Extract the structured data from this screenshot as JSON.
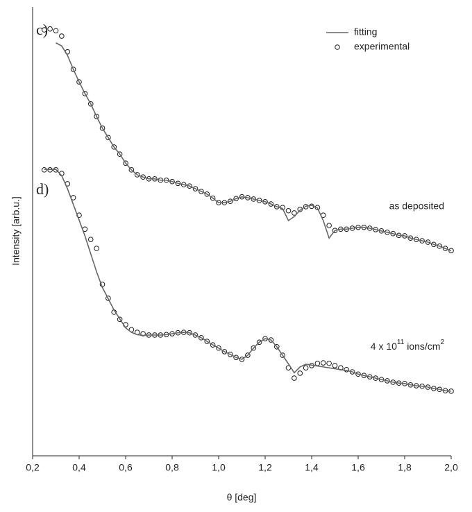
{
  "chart_data": {
    "type": "line",
    "xlabel": "θ [deg]",
    "ylabel": "Intensity [arb.u.]",
    "xlim": [
      0.2,
      2.0
    ],
    "ylim": [
      0,
      100
    ],
    "xticks": [
      {
        "value": 0.2,
        "label": "0,2"
      },
      {
        "value": 0.4,
        "label": "0,4"
      },
      {
        "value": 0.6,
        "label": "0,6"
      },
      {
        "value": 0.8,
        "label": "0,8"
      },
      {
        "value": 1.0,
        "label": "1,0"
      },
      {
        "value": 1.2,
        "label": "1,2"
      },
      {
        "value": 1.4,
        "label": "1,4"
      },
      {
        "value": 1.6,
        "label": "1,6"
      },
      {
        "value": 1.8,
        "label": "1,8"
      },
      {
        "value": 2.0,
        "label": "2,0"
      }
    ],
    "legend": "upper right",
    "annotations": {
      "c": "c)",
      "d": "d)",
      "top_curve": "as deposited",
      "bottom_curve": [
        "4 x 10",
        "11",
        " ions/cm",
        "2"
      ]
    },
    "x": [
      0.25,
      0.275,
      0.3,
      0.325,
      0.35,
      0.375,
      0.4,
      0.425,
      0.45,
      0.475,
      0.5,
      0.525,
      0.55,
      0.575,
      0.6,
      0.625,
      0.65,
      0.675,
      0.7,
      0.725,
      0.75,
      0.775,
      0.8,
      0.825,
      0.85,
      0.875,
      0.9,
      0.925,
      0.95,
      0.975,
      1.0,
      1.025,
      1.05,
      1.075,
      1.1,
      1.125,
      1.15,
      1.175,
      1.2,
      1.225,
      1.25,
      1.275,
      1.3,
      1.325,
      1.35,
      1.375,
      1.4,
      1.425,
      1.45,
      1.475,
      1.5,
      1.525,
      1.55,
      1.575,
      1.6,
      1.625,
      1.65,
      1.675,
      1.7,
      1.725,
      1.75,
      1.775,
      1.8,
      1.825,
      1.85,
      1.875,
      1.9,
      1.925,
      1.95,
      1.975,
      2.0
    ],
    "series": [
      {
        "name": "fitting",
        "mark": "line",
        "color": "#666666",
        "values": [
          null,
          null,
          92.0,
          91.3,
          89.2,
          86.1,
          83.3,
          80.7,
          78.4,
          75.6,
          73.0,
          70.9,
          68.8,
          67.2,
          65.2,
          63.7,
          62.6,
          62.1,
          61.7,
          61.7,
          61.4,
          61.4,
          61.1,
          60.7,
          60.4,
          60.1,
          59.5,
          58.9,
          58.3,
          57.4,
          56.4,
          56.4,
          56.7,
          57.3,
          57.7,
          57.5,
          57.2,
          56.9,
          56.6,
          56.1,
          55.5,
          55.1,
          52.4,
          53.3,
          54.7,
          55.6,
          55.8,
          55.2,
          52.4,
          48.5,
          50.2,
          50.5,
          50.5,
          50.7,
          50.9,
          50.9,
          50.7,
          50.4,
          50.1,
          49.8,
          49.5,
          49.1,
          49.0,
          48.5,
          48.2,
          47.9,
          47.6,
          47.1,
          46.7,
          46.2,
          45.7
        ]
      },
      {
        "name": "experimental",
        "mark": "circle",
        "color": "#1a1a1a",
        "values": [
          94.9,
          95.1,
          94.7,
          93.5,
          90.0,
          86.1,
          83.3,
          80.7,
          78.4,
          75.6,
          73.0,
          70.9,
          68.8,
          67.2,
          65.2,
          63.7,
          62.6,
          62.1,
          61.7,
          61.7,
          61.4,
          61.4,
          61.1,
          60.7,
          60.4,
          60.1,
          59.5,
          58.9,
          58.3,
          57.4,
          56.4,
          56.4,
          56.7,
          57.3,
          57.7,
          57.5,
          57.2,
          56.9,
          56.6,
          56.1,
          55.5,
          55.3,
          54.6,
          54.1,
          54.9,
          55.5,
          55.6,
          55.3,
          53.6,
          51.3,
          50.2,
          50.5,
          50.5,
          50.7,
          50.9,
          50.9,
          50.7,
          50.4,
          50.1,
          49.8,
          49.5,
          49.1,
          49.0,
          48.5,
          48.2,
          47.9,
          47.6,
          47.1,
          46.7,
          46.2,
          45.7
        ]
      },
      {
        "mark": "line",
        "color": "#666666",
        "values": [
          63.8,
          63.8,
          63.8,
          62.4,
          59.5,
          56.0,
          52.5,
          49.0,
          45.0,
          41.0,
          37.5,
          35.0,
          32.5,
          30.5,
          28.5,
          27.5,
          27.0,
          26.8,
          26.9,
          26.9,
          26.9,
          27.0,
          27.2,
          27.4,
          27.5,
          27.4,
          26.9,
          26.3,
          25.5,
          24.7,
          24.0,
          23.2,
          22.6,
          21.9,
          21.5,
          22.4,
          24.0,
          25.3,
          26.1,
          25.8,
          24.3,
          22.4,
          20.5,
          18.5,
          19.8,
          20.4,
          20.2,
          20.0,
          19.8,
          19.6,
          19.4,
          19.2,
          19.0,
          18.7,
          18.2,
          17.9,
          17.6,
          17.3,
          17.0,
          16.7,
          16.4,
          16.2,
          16.1,
          15.8,
          15.6,
          15.5,
          15.3,
          15.0,
          14.8,
          14.5,
          14.4
        ]
      },
      {
        "mark": "circle",
        "color": "#1a1a1a",
        "values": [
          63.7,
          63.7,
          63.7,
          62.9,
          60.6,
          57.5,
          53.6,
          50.5,
          48.2,
          46.2,
          38.2,
          35.1,
          32.0,
          30.4,
          29.2,
          28.1,
          27.5,
          27.2,
          26.9,
          26.9,
          26.9,
          27.0,
          27.2,
          27.4,
          27.5,
          27.4,
          26.9,
          26.3,
          25.5,
          24.7,
          24.0,
          23.2,
          22.6,
          21.9,
          21.5,
          22.4,
          24.0,
          25.3,
          26.1,
          25.8,
          24.3,
          22.4,
          19.6,
          17.3,
          18.4,
          19.6,
          20.1,
          20.6,
          20.7,
          20.6,
          20.1,
          19.6,
          19.2,
          18.7,
          18.2,
          17.9,
          17.6,
          17.3,
          17.0,
          16.7,
          16.4,
          16.2,
          16.1,
          15.8,
          15.6,
          15.5,
          15.3,
          15.0,
          14.8,
          14.5,
          14.4
        ]
      }
    ]
  }
}
